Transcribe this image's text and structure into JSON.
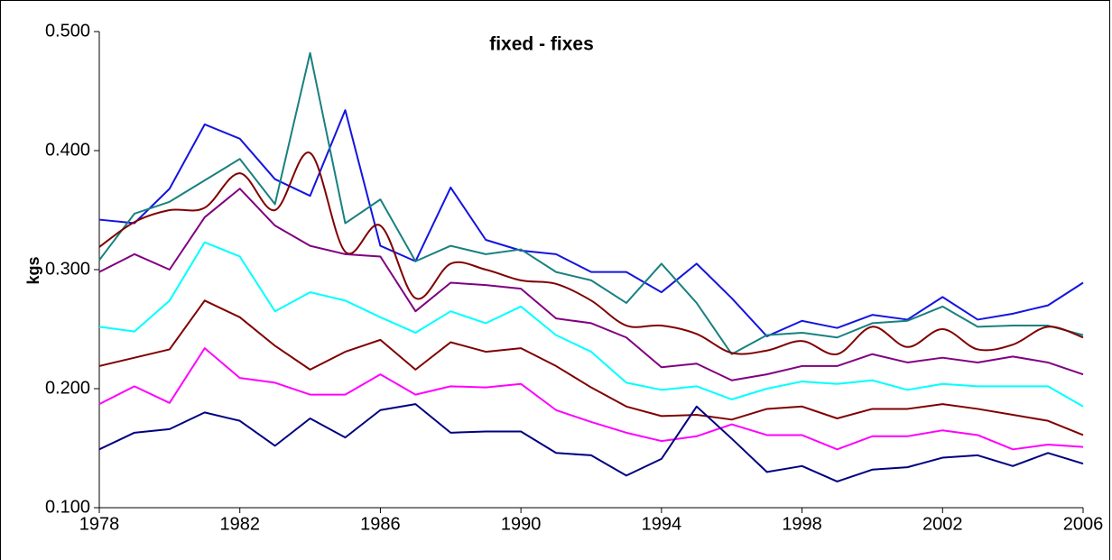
{
  "chart_data": {
    "type": "line",
    "title": "fixed - fixes",
    "ylabel": "kgs",
    "x": [
      1978,
      1979,
      1980,
      1981,
      1982,
      1983,
      1984,
      1985,
      1986,
      1987,
      1988,
      1989,
      1990,
      1991,
      1992,
      1993,
      1994,
      1995,
      1996,
      1997,
      1998,
      1999,
      2000,
      2001,
      2002,
      2003,
      2004,
      2005,
      2006
    ],
    "xlim": [
      1978,
      2006
    ],
    "xticks": [
      1978,
      1982,
      1986,
      1990,
      1994,
      1998,
      2002,
      2006
    ],
    "ylim": [
      0.1,
      0.5
    ],
    "yticks": [
      {
        "value": 0.1,
        "label": "0.100"
      },
      {
        "value": 0.2,
        "label": "0.200"
      },
      {
        "value": 0.3,
        "label": "0.300"
      },
      {
        "value": 0.4,
        "label": "0.400"
      },
      {
        "value": 0.5,
        "label": "0.500"
      }
    ],
    "grid": false,
    "series": [
      {
        "color": "#1414e0",
        "values": [
          0.342,
          0.339,
          0.368,
          0.422,
          0.41,
          0.376,
          0.362,
          0.434,
          0.32,
          0.307,
          0.369,
          0.325,
          0.316,
          0.313,
          0.298,
          0.298,
          0.281,
          0.305,
          0.276,
          0.244,
          0.257,
          0.251,
          0.262,
          0.258,
          0.277,
          0.258,
          0.263,
          0.27,
          0.289
        ]
      },
      {
        "color": "#1a8080",
        "values": [
          0.308,
          0.347,
          0.357,
          0.375,
          0.393,
          0.355,
          0.482,
          0.339,
          0.359,
          0.307,
          0.32,
          0.313,
          0.317,
          0.298,
          0.291,
          0.272,
          0.305,
          0.272,
          0.229,
          0.245,
          0.247,
          0.243,
          0.255,
          0.257,
          0.269,
          0.252,
          0.253,
          0.253,
          0.245
        ]
      },
      {
        "color": "#800000",
        "smooth": true,
        "values": [
          0.319,
          0.34,
          0.35,
          0.352,
          0.381,
          0.35,
          0.398,
          0.315,
          0.337,
          0.276,
          0.305,
          0.3,
          0.291,
          0.288,
          0.274,
          0.253,
          0.253,
          0.246,
          0.23,
          0.232,
          0.24,
          0.229,
          0.252,
          0.235,
          0.25,
          0.233,
          0.237,
          0.252,
          0.243
        ]
      },
      {
        "color": "#800080",
        "values": [
          0.298,
          0.313,
          0.3,
          0.344,
          0.368,
          0.337,
          0.32,
          0.313,
          0.311,
          0.265,
          0.289,
          0.287,
          0.284,
          0.259,
          0.255,
          0.243,
          0.218,
          0.221,
          0.207,
          0.212,
          0.219,
          0.219,
          0.229,
          0.222,
          0.226,
          0.222,
          0.227,
          0.222,
          0.212
        ]
      },
      {
        "color": "#00ffff",
        "values": [
          0.252,
          0.248,
          0.274,
          0.323,
          0.311,
          0.265,
          0.281,
          0.274,
          0.26,
          0.247,
          0.265,
          0.255,
          0.269,
          0.245,
          0.231,
          0.205,
          0.199,
          0.202,
          0.191,
          0.2,
          0.206,
          0.204,
          0.207,
          0.199,
          0.204,
          0.202,
          0.202,
          0.202,
          0.185
        ]
      },
      {
        "color": "#800000",
        "values": [
          0.219,
          0.226,
          0.233,
          0.274,
          0.26,
          0.236,
          0.216,
          0.231,
          0.241,
          0.216,
          0.239,
          0.231,
          0.234,
          0.219,
          0.201,
          0.185,
          0.177,
          0.178,
          0.174,
          0.183,
          0.185,
          0.175,
          0.183,
          0.183,
          0.187,
          0.183,
          0.178,
          0.173,
          0.161
        ]
      },
      {
        "color": "#ff00ff",
        "values": [
          0.187,
          0.202,
          0.188,
          0.234,
          0.209,
          0.205,
          0.195,
          0.195,
          0.212,
          0.195,
          0.202,
          0.201,
          0.204,
          0.182,
          0.172,
          0.163,
          0.156,
          0.16,
          0.17,
          0.161,
          0.161,
          0.149,
          0.16,
          0.16,
          0.165,
          0.161,
          0.149,
          0.153,
          0.151
        ]
      },
      {
        "color": "#000080",
        "values": [
          0.149,
          0.163,
          0.166,
          0.18,
          0.173,
          0.152,
          0.175,
          0.159,
          0.182,
          0.187,
          0.163,
          0.164,
          0.164,
          0.146,
          0.144,
          0.127,
          0.141,
          0.185,
          0.158,
          0.13,
          0.135,
          0.122,
          0.132,
          0.134,
          0.142,
          0.144,
          0.135,
          0.146,
          0.137
        ]
      }
    ]
  }
}
